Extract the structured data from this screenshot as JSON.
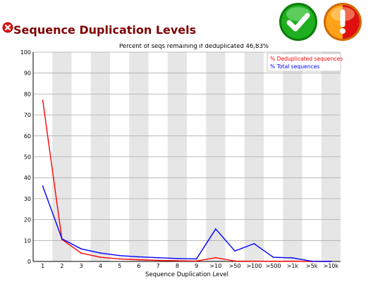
{
  "page": {
    "title": "Sequence Duplication Levels",
    "status_icon": "error-x-icon",
    "badges": [
      "pass-check-icon",
      "warn-exclamation-icon"
    ]
  },
  "colors": {
    "title": "#800000",
    "deduplicated": "#ff0000",
    "total": "#0000ff",
    "stripe": "#e6e6e6",
    "gridline": "#aaaaaa"
  },
  "chart_data": {
    "type": "line",
    "title": "Percent of seqs remaining if deduplicated 46,83%",
    "xlabel": "Sequence Duplication Level",
    "ylabel": "",
    "categories": [
      "1",
      "2",
      "3",
      "4",
      "5",
      "6",
      "7",
      "8",
      "9",
      ">10",
      ">50",
      ">100",
      ">500",
      ">1k",
      ">5k",
      ">10k"
    ],
    "ylim": [
      0,
      100
    ],
    "yticks": [
      0,
      10,
      20,
      30,
      40,
      50,
      60,
      70,
      80,
      90,
      100
    ],
    "grid": true,
    "alternating_column_stripes": true,
    "legend_position": "top-right",
    "series": [
      {
        "name": "% Deduplicated sequences",
        "color": "#ff0000",
        "values": [
          77,
          10.5,
          4,
          2,
          1.2,
          0.8,
          0.5,
          0.3,
          0.2,
          1.8,
          0.2,
          0.1,
          0.1,
          0.1,
          0,
          0
        ]
      },
      {
        "name": "% Total sequences",
        "color": "#0000ff",
        "values": [
          36,
          10.8,
          6,
          4,
          2.8,
          2.2,
          1.8,
          1.4,
          1.2,
          15.5,
          5,
          8.5,
          2,
          1.7,
          0.1,
          0
        ]
      }
    ]
  }
}
